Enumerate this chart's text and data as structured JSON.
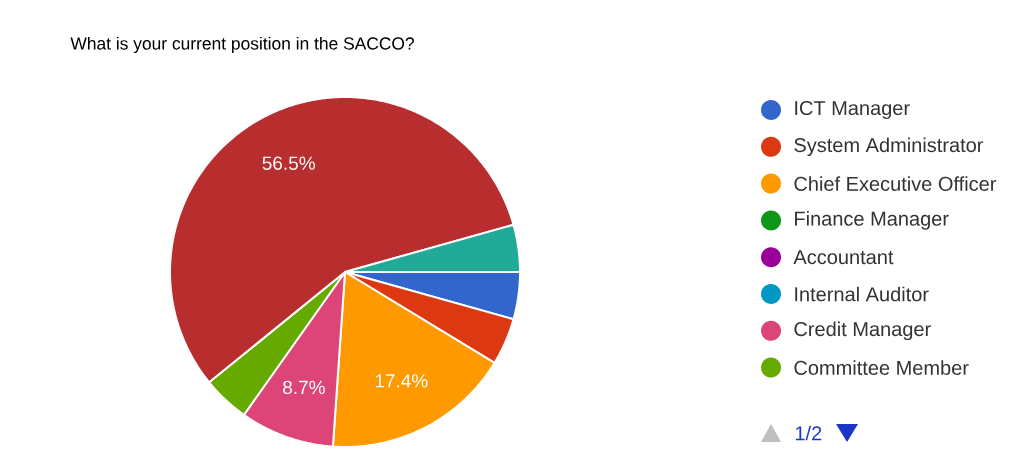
{
  "chart_data": {
    "type": "pie",
    "title": "What is your current position in the SACCO?",
    "categories": [
      "ICT Manager",
      "System Administrator",
      "Chief Executive Officer",
      "Finance Manager",
      "Accountant",
      "Internal Auditor",
      "Credit Manager",
      "Committee Member",
      null,
      null
    ],
    "values": [
      4.35,
      4.35,
      17.4,
      0,
      0,
      0,
      8.7,
      4.35,
      56.5,
      4.35
    ],
    "colors": [
      "#3366cc",
      "#dc3912",
      "#ff9900",
      "#109618",
      "#990099",
      "#0099c6",
      "#dd4477",
      "#66aa00",
      "#b82e2e",
      "#22aa99"
    ],
    "value_labels": [
      null,
      null,
      "17.4%",
      null,
      null,
      null,
      "8.7%",
      null,
      "56.5%",
      null
    ],
    "legend": "right",
    "annotations": [
      "1/2"
    ]
  }
}
